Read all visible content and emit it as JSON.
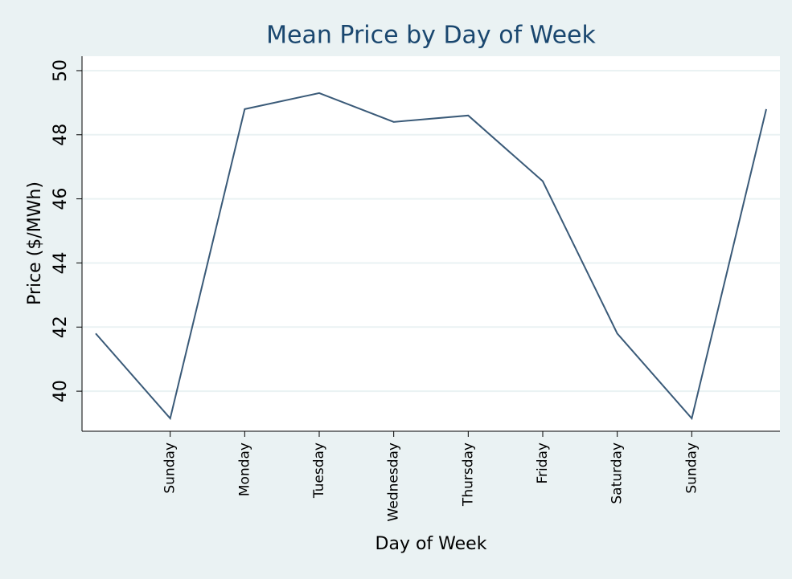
{
  "chart_data": {
    "type": "line",
    "title": "Mean Price by Day of Week",
    "x_label": "Day of Week",
    "y_label": "Price ($/MWh)",
    "categories": [
      null,
      "Sunday",
      "Monday",
      "Tuesday",
      "Wednesday",
      "Thursday",
      "Friday",
      "Saturday",
      "Sunday",
      null
    ],
    "values": [
      41.8,
      39.15,
      48.8,
      49.3,
      48.4,
      48.6,
      46.55,
      41.8,
      39.15,
      48.8
    ],
    "color": "#3a5a78",
    "ylim": [
      38.75,
      50.45
    ],
    "yticks": [
      40,
      42,
      44,
      46,
      48,
      50
    ],
    "grid": true
  }
}
